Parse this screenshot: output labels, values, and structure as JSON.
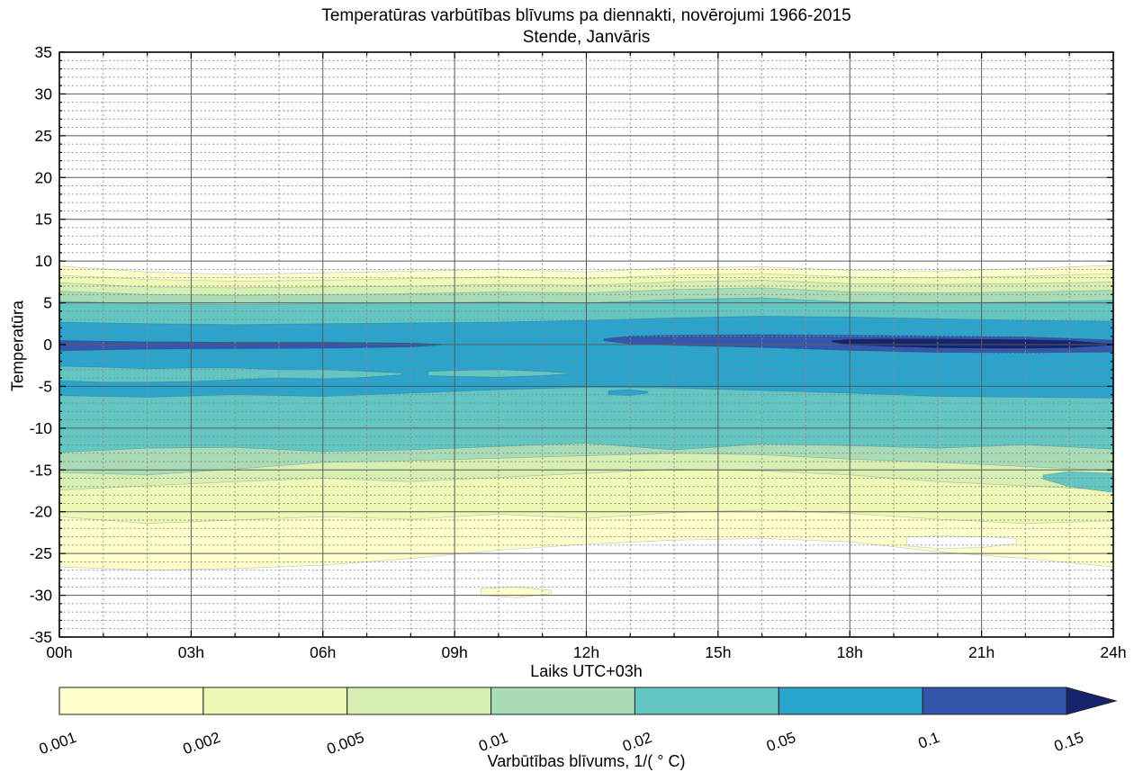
{
  "title": {
    "line1": "Temperatūras varbūtības blīvums pa diennakti, novērojumi 1966-2015",
    "line2": "Stende, Janvāris"
  },
  "axes": {
    "xlabel": "Laiks UTC+03h",
    "ylabel": "Temperatūra",
    "xticks": [
      "00h",
      "03h",
      "06h",
      "09h",
      "12h",
      "15h",
      "18h",
      "21h",
      "24h"
    ],
    "xtick_hours": [
      0,
      3,
      6,
      9,
      12,
      15,
      18,
      21,
      24
    ],
    "yticks": [
      "35",
      "30",
      "25",
      "20",
      "15",
      "10",
      "5",
      "0",
      "-5",
      "-10",
      "-15",
      "-20",
      "-25",
      "-30",
      "-35"
    ],
    "ytick_values": [
      35,
      30,
      25,
      20,
      15,
      10,
      5,
      0,
      -5,
      -10,
      -15,
      -20,
      -25,
      -30,
      -35
    ],
    "ylim": [
      -35,
      35
    ],
    "xlim_hours": [
      0,
      24
    ],
    "x_minor_step_h": 1,
    "x_major_step_h": 3,
    "y_minor_step": 1,
    "y_major_step": 5,
    "grid": "on"
  },
  "colorbar": {
    "label": "Varbūtības blīvums, 1/( ° C)",
    "tick_labels": [
      "0.001",
      "0.002",
      "0.005",
      "0.01",
      "0.02",
      "0.05",
      "0.1",
      "0.15"
    ],
    "segment_colors": [
      "#ffffcc",
      "#eff9b5",
      "#d7efb3",
      "#a9dcb6",
      "#63c6c3",
      "#2ba4cd",
      "#3457ac"
    ],
    "arrow_color": "#16246d"
  },
  "chart_data": {
    "type": "filled_contour",
    "x_unit": "hour of day, UTC+03",
    "y_unit": "temperature, °C",
    "z_unit": "probability density, 1/°C",
    "level_values": [
      0.001,
      0.002,
      0.005,
      0.01,
      0.02,
      0.05,
      0.1,
      0.15
    ],
    "t_samples": [
      0,
      2,
      4,
      6,
      8,
      10,
      12,
      14,
      16,
      18,
      20,
      22,
      24
    ],
    "levels": [
      {
        "value": 0.001,
        "color": "#ffffcc",
        "segments": [
          {
            "t": [
              0,
              2,
              4,
              6,
              8,
              10,
              12,
              14,
              16,
              18,
              20,
              22,
              24
            ],
            "upper": [
              9.4,
              8.7,
              8.4,
              8.6,
              8.8,
              9.0,
              8.7,
              9.2,
              9.3,
              8.9,
              8.8,
              9.1,
              9.5
            ],
            "lower": [
              -26.6,
              -27.0,
              -26.8,
              -26.4,
              -25.6,
              -24.6,
              -23.9,
              -23.4,
              -23.2,
              -23.6,
              -24.8,
              -25.6,
              -26.6
            ]
          }
        ]
      },
      {
        "value": 0.002,
        "color": "#eff9b5",
        "segments": [
          {
            "t": [
              0,
              2,
              4,
              6,
              8,
              10,
              12,
              14,
              16,
              18,
              20,
              22,
              24
            ],
            "upper": [
              8.3,
              7.8,
              7.6,
              7.7,
              7.9,
              8.1,
              7.9,
              8.3,
              8.5,
              8.1,
              8.0,
              8.2,
              8.5
            ],
            "lower": [
              -20.6,
              -21.4,
              -21.0,
              -20.6,
              -20.9,
              -20.3,
              -20.8,
              -20.1,
              -19.8,
              -20.2,
              -20.9,
              -21.4,
              -21.1
            ]
          }
        ]
      },
      {
        "value": 0.005,
        "color": "#d7efb3",
        "segments": [
          {
            "t": [
              0,
              2,
              4,
              6,
              8,
              10,
              12,
              14,
              16,
              18,
              20,
              22,
              24
            ],
            "upper": [
              7.4,
              6.9,
              6.8,
              6.9,
              7.0,
              7.2,
              7.1,
              7.5,
              7.7,
              7.3,
              7.2,
              7.3,
              7.5
            ],
            "lower": [
              -17.4,
              -16.9,
              -16.4,
              -16.0,
              -16.4,
              -15.9,
              -15.4,
              -14.9,
              -15.1,
              -15.6,
              -16.4,
              -16.9,
              -17.4
            ]
          }
        ]
      },
      {
        "value": 0.01,
        "color": "#a9dcb6",
        "segments": [
          {
            "t": [
              0,
              2,
              4,
              6,
              8,
              10,
              12,
              14,
              16,
              18,
              20,
              22,
              24
            ],
            "upper": [
              6.4,
              6.0,
              5.9,
              6.0,
              6.1,
              6.3,
              6.2,
              6.6,
              6.8,
              6.3,
              6.2,
              6.3,
              6.5
            ],
            "lower": [
              -15.3,
              -15.6,
              -14.9,
              -14.1,
              -13.9,
              -13.6,
              -13.3,
              -13.0,
              -13.2,
              -13.7,
              -14.1,
              -14.6,
              -15.1
            ]
          }
        ]
      },
      {
        "value": 0.02,
        "color": "#63c6c3",
        "segments": [
          {
            "t": [
              0,
              2,
              4,
              6,
              8,
              10,
              12,
              14,
              16,
              18,
              20,
              22,
              24
            ],
            "upper": [
              5.2,
              4.9,
              4.8,
              4.9,
              5.0,
              5.1,
              5.0,
              5.4,
              5.6,
              5.1,
              5.0,
              5.1,
              5.3
            ],
            "lower": [
              -12.9,
              -12.4,
              -12.3,
              -12.8,
              -12.6,
              -12.2,
              -11.8,
              -12.6,
              -11.9,
              -12.1,
              -12.4,
              -12.0,
              -12.5
            ]
          }
        ]
      },
      {
        "value": 0.05,
        "color": "#2ba4cd",
        "segments": [
          {
            "t": [
              0,
              2,
              4,
              6,
              8,
              10,
              12,
              14,
              16,
              18,
              20,
              22,
              24
            ],
            "upper": [
              2.7,
              2.5,
              2.4,
              2.5,
              2.6,
              2.7,
              2.9,
              3.2,
              3.4,
              3.3,
              3.1,
              2.9,
              2.8
            ],
            "lower": [
              -6.1,
              -6.3,
              -6.0,
              -6.2,
              -5.8,
              -5.4,
              -5.1,
              -5.2,
              -5.5,
              -5.8,
              -6.2,
              -6.3,
              -6.4
            ]
          }
        ]
      },
      {
        "value": 0.1,
        "color": "#3457ac",
        "segments": [
          {
            "t": [
              0,
              2,
              4,
              6,
              8,
              8.7
            ],
            "upper": [
              0.5,
              0.35,
              0.3,
              0.3,
              0.2,
              0.05
            ],
            "lower": [
              -0.75,
              -0.55,
              -0.5,
              -0.45,
              -0.3,
              -0.05
            ]
          },
          {
            "t": [
              12.4,
              13,
              14,
              16,
              18,
              20,
              22,
              23,
              24
            ],
            "upper": [
              0.7,
              1.05,
              1.15,
              1.2,
              1.15,
              1.05,
              0.95,
              0.75,
              0.55
            ],
            "lower": [
              0.45,
              0.05,
              -0.1,
              -0.35,
              -0.7,
              -0.95,
              -1.0,
              -0.95,
              -0.9
            ]
          }
        ]
      },
      {
        "value": 0.15,
        "color": "#16246d",
        "segments": [
          {
            "t": [
              17.6,
              18,
              19,
              20,
              21,
              22,
              23,
              23.9
            ],
            "upper": [
              0.5,
              0.65,
              0.7,
              0.7,
              0.65,
              0.6,
              0.5,
              0.1
            ],
            "lower": [
              0.3,
              -0.05,
              -0.25,
              -0.4,
              -0.45,
              -0.45,
              -0.4,
              -0.1
            ]
          }
        ]
      }
    ],
    "islands": [
      {
        "value": 0.02,
        "color": "#63c6c3",
        "t": [
          0,
          1,
          2,
          3,
          4,
          5,
          6,
          7,
          7.8
        ],
        "upper": [
          -2.6,
          -2.7,
          -2.9,
          -2.8,
          -2.8,
          -3.0,
          -3.0,
          -3.2,
          -3.4
        ],
        "lower": [
          -4.3,
          -4.5,
          -4.5,
          -4.4,
          -4.2,
          -4.0,
          -4.1,
          -3.9,
          -3.6
        ]
      },
      {
        "value": 0.02,
        "color": "#63c6c3",
        "t": [
          8.4,
          9,
          10,
          11,
          11.6
        ],
        "upper": [
          -3.2,
          -3.1,
          -3.0,
          -3.2,
          -3.4
        ],
        "lower": [
          -3.7,
          -3.8,
          -3.9,
          -3.7,
          -3.5
        ]
      },
      {
        "value": 0.05,
        "color": "#2ba4cd",
        "t": [
          12.5,
          13,
          13.4
        ],
        "upper": [
          -5.5,
          -5.4,
          -5.6
        ],
        "lower": [
          -6.0,
          -6.1,
          -5.8
        ]
      },
      {
        "value": 0.001,
        "color": "#ffffcc",
        "t": [
          9.6,
          10.4,
          11.2
        ],
        "upper": [
          -29.2,
          -29.0,
          -29.4
        ],
        "lower": [
          -30.0,
          -30.3,
          -29.8
        ]
      },
      {
        "value": 0.02,
        "color": "#63c6c3",
        "t": [
          22.4,
          23,
          24
        ],
        "upper": [
          -15.6,
          -15.2,
          -15.4
        ],
        "lower": [
          -16.1,
          -17.0,
          -17.7
        ]
      },
      {
        "value": 0,
        "color": "#ffffff",
        "t": [
          19.3,
          20,
          21,
          21.8
        ],
        "upper": [
          -23.0,
          -22.9,
          -23.0,
          -23.2
        ],
        "lower": [
          -24.1,
          -24.4,
          -24.3,
          -23.8
        ]
      }
    ]
  }
}
